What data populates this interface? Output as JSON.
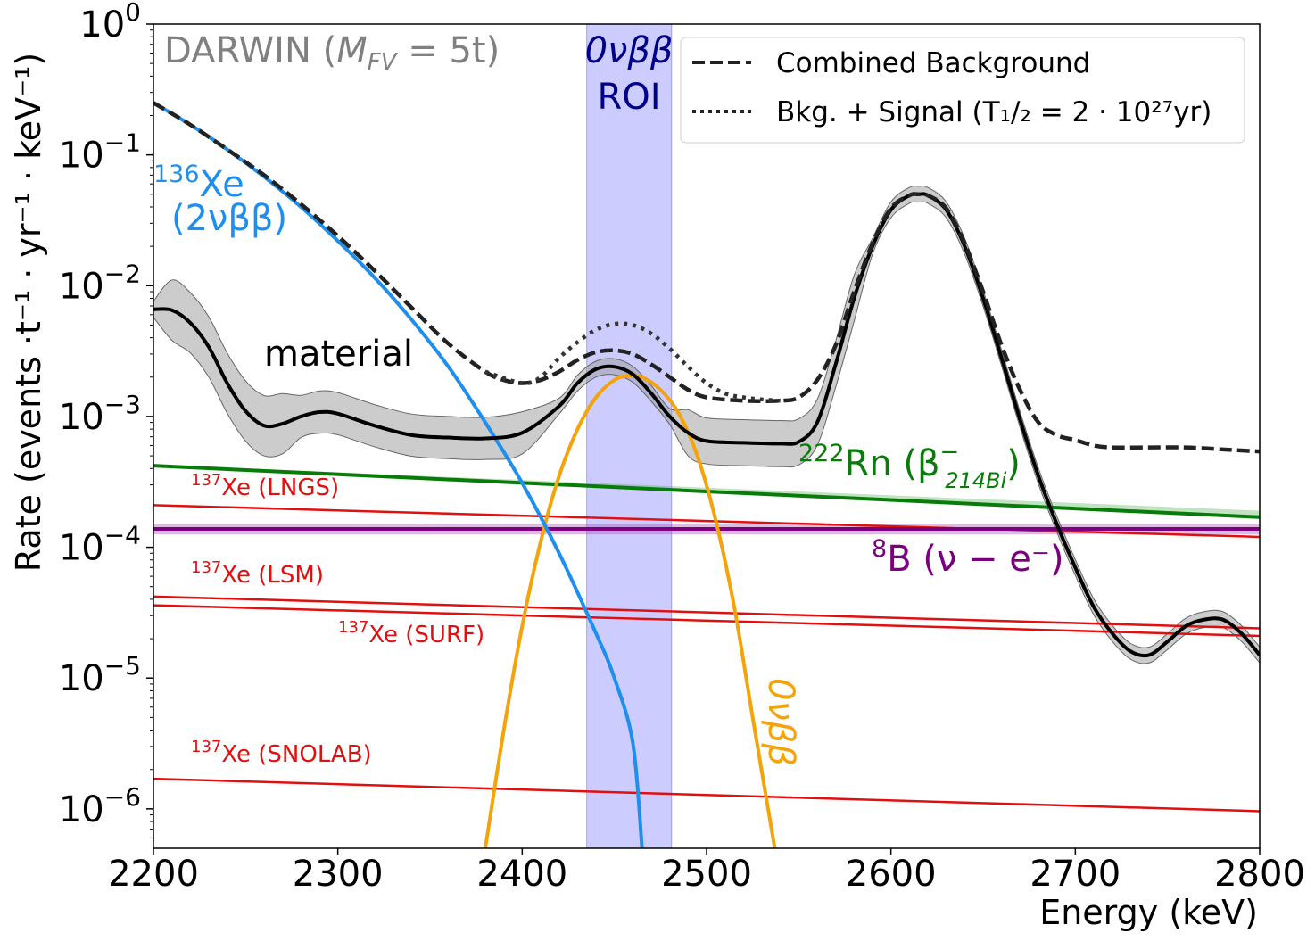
{
  "chart_data": {
    "type": "line",
    "xlabel": "Energy (keV)",
    "ylabel": "Rate (events ·t⁻¹ · yr⁻¹ · keV⁻¹)",
    "xlim": [
      2200,
      2800
    ],
    "ylim": [
      5e-07,
      1
    ],
    "yscale": "log",
    "x_ticks": [
      2200,
      2300,
      2400,
      2500,
      2600,
      2700,
      2800
    ],
    "y_ticks": [
      {
        "value": 1,
        "base": "10",
        "exp": "0"
      },
      {
        "value": 0.1,
        "base": "10",
        "exp": "−1"
      },
      {
        "value": 0.01,
        "base": "10",
        "exp": "−2"
      },
      {
        "value": 0.001,
        "base": "10",
        "exp": "−3"
      },
      {
        "value": 0.0001,
        "base": "10",
        "exp": "−4"
      },
      {
        "value": 1e-05,
        "base": "10",
        "exp": "−5"
      },
      {
        "value": 1e-06,
        "base": "10",
        "exp": "−6"
      }
    ],
    "watermark": "DARWIN (M_FV = 5t)",
    "roi": {
      "x0": 2435,
      "x1": 2481,
      "label_line1": "0νββ",
      "label_line2": "ROI",
      "color": "#0000ee"
    },
    "legend": {
      "position": "top-right",
      "entries": [
        {
          "label": "Combined Background",
          "style": "dashed"
        },
        {
          "label": "Bkg. + Signal (T₁/₂ = 2 · 10²⁷yr)",
          "style": "dotted"
        }
      ]
    },
    "series": [
      {
        "name": "136Xe (2νββ)",
        "color": "#1e8fef",
        "x": [
          2200,
          2220,
          2240,
          2260,
          2280,
          2300,
          2320,
          2340,
          2360,
          2380,
          2400,
          2420,
          2440,
          2450,
          2460,
          2465
        ],
        "y": [
          0.25,
          0.17,
          0.11,
          0.068,
          0.04,
          0.022,
          0.0115,
          0.0055,
          0.0024,
          0.0009,
          0.00031,
          9e-05,
          2.2e-05,
          1e-05,
          3.2e-06,
          5e-07
        ]
      },
      {
        "name": "material",
        "color": "#000000",
        "x": [
          2200,
          2210,
          2220,
          2230,
          2240,
          2250,
          2260,
          2270,
          2280,
          2290,
          2300,
          2320,
          2340,
          2360,
          2380,
          2400,
          2420,
          2430,
          2440,
          2450,
          2460,
          2470,
          2480,
          2490,
          2500,
          2520,
          2540,
          2550,
          2560,
          2570,
          2580,
          2590,
          2600,
          2610,
          2615,
          2620,
          2630,
          2640,
          2650,
          2660,
          2670,
          2680,
          2690,
          2700,
          2710,
          2720,
          2730,
          2740,
          2750,
          2760,
          2770,
          2780,
          2790,
          2800
        ],
        "y": [
          0.0066,
          0.0065,
          0.0052,
          0.0034,
          0.0018,
          0.0011,
          0.00085,
          0.00088,
          0.001,
          0.00108,
          0.00105,
          0.00085,
          0.00072,
          0.00069,
          0.00068,
          0.00075,
          0.0012,
          0.0018,
          0.0023,
          0.0024,
          0.0021,
          0.0015,
          0.001,
          0.00075,
          0.00065,
          0.00063,
          0.00062,
          0.00064,
          0.0009,
          0.0025,
          0.008,
          0.02,
          0.038,
          0.049,
          0.05,
          0.049,
          0.038,
          0.02,
          0.008,
          0.0028,
          0.00095,
          0.00035,
          0.00015,
          7e-05,
          3.5e-05,
          2.2e-05,
          1.6e-05,
          1.5e-05,
          1.9e-05,
          2.5e-05,
          2.8e-05,
          2.8e-05,
          2.2e-05,
          1.5e-05
        ]
      },
      {
        "name": "Combined Background",
        "color": "#222222",
        "x": [
          2200,
          2220,
          2240,
          2260,
          2280,
          2300,
          2320,
          2340,
          2360,
          2380,
          2390,
          2400,
          2410,
          2420,
          2430,
          2440,
          2450,
          2460,
          2470,
          2480,
          2490,
          2500,
          2520,
          2540,
          2550,
          2560,
          2570,
          2580,
          2590,
          2600,
          2610,
          2615,
          2620,
          2630,
          2640,
          2650,
          2660,
          2670,
          2680,
          2690,
          2700,
          2710,
          2720,
          2740,
          2760,
          2780,
          2800
        ],
        "y": [
          0.25,
          0.17,
          0.11,
          0.07,
          0.042,
          0.024,
          0.013,
          0.0068,
          0.0036,
          0.0022,
          0.0019,
          0.0018,
          0.0019,
          0.0022,
          0.0027,
          0.0031,
          0.0032,
          0.003,
          0.0025,
          0.002,
          0.0016,
          0.0014,
          0.00132,
          0.00132,
          0.0014,
          0.0019,
          0.0035,
          0.009,
          0.021,
          0.039,
          0.049,
          0.05,
          0.049,
          0.039,
          0.021,
          0.009,
          0.0035,
          0.0016,
          0.0009,
          0.00072,
          0.00066,
          0.0006,
          0.00058,
          0.00058,
          0.00058,
          0.00056,
          0.00054
        ]
      },
      {
        "name": "Bkg. + Signal",
        "color": "#333333",
        "x": [
          2380,
          2400,
          2410,
          2420,
          2430,
          2440,
          2450,
          2460,
          2470,
          2480,
          2490,
          2500,
          2510,
          2520,
          2530,
          2540
        ],
        "y": [
          0.0022,
          0.0018,
          0.002,
          0.0028,
          0.0037,
          0.0046,
          0.0051,
          0.005,
          0.0043,
          0.0033,
          0.0024,
          0.0018,
          0.0015,
          0.0014,
          0.00135,
          0.00132
        ]
      },
      {
        "name": "0νββ",
        "color": "#f5a30a",
        "x": [
          2380,
          2390,
          2400,
          2410,
          2420,
          2430,
          2440,
          2450,
          2458,
          2465,
          2475,
          2485,
          2495,
          2505,
          2515,
          2525,
          2537
        ],
        "y": [
          5e-07,
          4e-06,
          2.5e-05,
          0.00011,
          0.00035,
          0.0008,
          0.0014,
          0.0019,
          0.00205,
          0.002,
          0.0016,
          0.00105,
          0.0005,
          0.00016,
          3.5e-05,
          5e-06,
          5e-07
        ]
      },
      {
        "name": "222Rn (β⁻ 214Bi)",
        "color": "#087c08",
        "x": [
          2200,
          2800
        ],
        "y": [
          0.00042,
          0.00017
        ]
      },
      {
        "name": "137Xe (LNGS)",
        "color": "#e01010",
        "x": [
          2200,
          2800
        ],
        "y": [
          0.00021,
          0.00012
        ]
      },
      {
        "name": "8B (ν − e⁻)",
        "color": "#7b0080",
        "x": [
          2200,
          2800
        ],
        "y": [
          0.000138,
          0.000138
        ]
      },
      {
        "name": "137Xe (LSM)",
        "color": "#e01010",
        "x": [
          2200,
          2800
        ],
        "y": [
          4.2e-05,
          2.4e-05
        ]
      },
      {
        "name": "137Xe (SURF)",
        "color": "#e01010",
        "x": [
          2200,
          2800
        ],
        "y": [
          3.6e-05,
          2.1e-05
        ]
      },
      {
        "name": "137Xe (SNOLAB)",
        "color": "#e01010",
        "x": [
          2200,
          2800
        ],
        "y": [
          1.7e-06,
          9.6e-07
        ]
      }
    ],
    "annotations": {
      "xe136_line1": {
        "sup": "136",
        "main": "Xe"
      },
      "xe136_line2": "(2νββ)",
      "material": "material",
      "rn": {
        "sup": "222",
        "main": "Rn (β",
        "beta_sup": "−",
        "beta_sub": "214Bi",
        "close": ")"
      },
      "b8": {
        "sup": "8",
        "main": "B (ν − e⁻)"
      },
      "lngs": {
        "sup": "137",
        "main": "Xe (LNGS)"
      },
      "lsm": {
        "sup": "137",
        "main": "Xe (LSM)"
      },
      "surf": {
        "sup": "137",
        "main": "Xe (SURF)"
      },
      "snolab": {
        "sup": "137",
        "main": "Xe (SNOLAB)"
      },
      "onu": "0νββ"
    }
  }
}
